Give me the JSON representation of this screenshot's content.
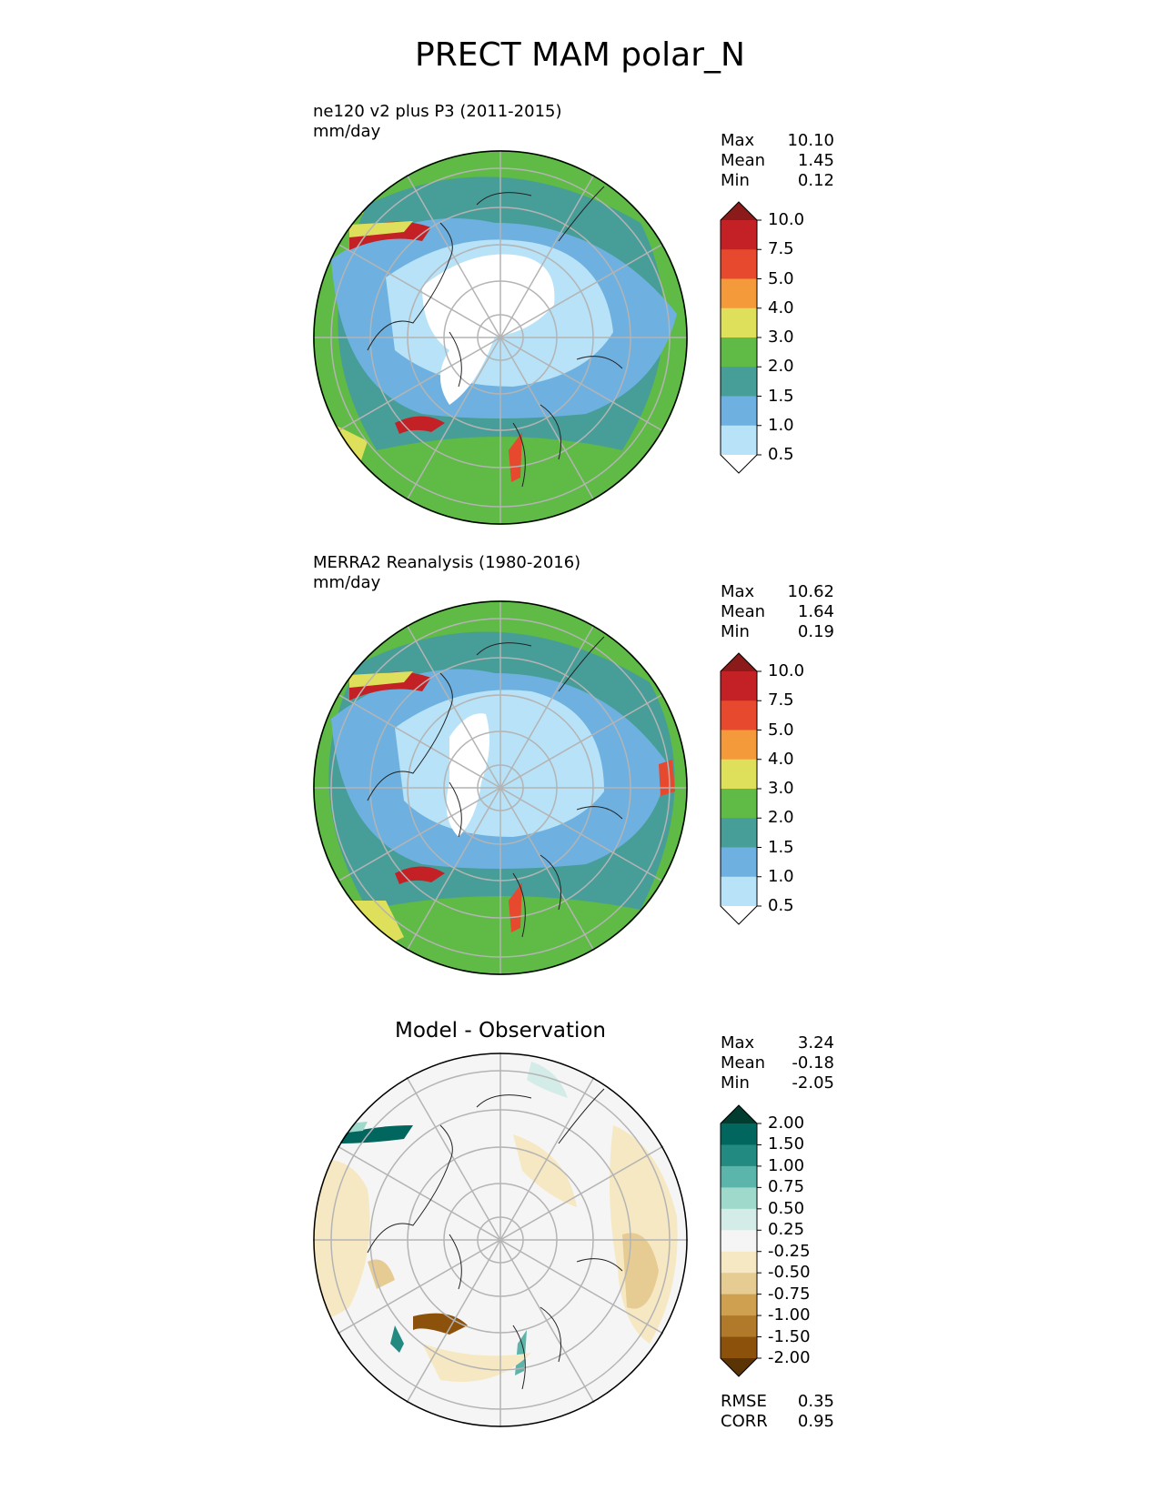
{
  "title": "PRECT MAM polar_N",
  "panels": [
    {
      "id": "model",
      "subtitle": "ne120 v2 plus P3 (2011-2015)",
      "units": "mm/day",
      "stats": [
        {
          "label": "Max",
          "value": "10.10"
        },
        {
          "label": "Mean",
          "value": "1.45"
        },
        {
          "label": "Min",
          "value": "0.12"
        }
      ],
      "colorbar": {
        "ticks": [
          "10.0",
          "7.5",
          "5.0",
          "4.0",
          "3.0",
          "2.0",
          "1.5",
          "1.0",
          "0.5"
        ],
        "colors": [
          "#8b1a1a",
          "#c42127",
          "#e6492d",
          "#f59a3b",
          "#dee05b",
          "#5fba46",
          "#479e99",
          "#6eb1e0",
          "#b7e2f7",
          "#ffffff"
        ]
      }
    },
    {
      "id": "obs",
      "subtitle": "MERRA2 Reanalysis (1980-2016)",
      "units": "mm/day",
      "stats": [
        {
          "label": "Max",
          "value": "10.62"
        },
        {
          "label": "Mean",
          "value": "1.64"
        },
        {
          "label": "Min",
          "value": "0.19"
        }
      ],
      "colorbar": {
        "ticks": [
          "10.0",
          "7.5",
          "5.0",
          "4.0",
          "3.0",
          "2.0",
          "1.5",
          "1.0",
          "0.5"
        ],
        "colors": [
          "#8b1a1a",
          "#c42127",
          "#e6492d",
          "#f59a3b",
          "#dee05b",
          "#5fba46",
          "#479e99",
          "#6eb1e0",
          "#b7e2f7",
          "#ffffff"
        ]
      }
    },
    {
      "id": "diff",
      "title": "Model - Observation",
      "stats": [
        {
          "label": "Max",
          "value": "3.24"
        },
        {
          "label": "Mean",
          "value": "-0.18"
        },
        {
          "label": "Min",
          "value": "-2.05"
        }
      ],
      "colorbar": {
        "ticks": [
          "2.00",
          "1.50",
          "1.00",
          "0.75",
          "0.50",
          "0.25",
          "-0.25",
          "-0.50",
          "-0.75",
          "-1.00",
          "-1.50",
          "-2.00"
        ],
        "colors": [
          "#003c30",
          "#01665e",
          "#238a82",
          "#5bb5aa",
          "#9ed9cc",
          "#d3ece8",
          "#f5f5f5",
          "#f6e8c3",
          "#e6cc92",
          "#cfa050",
          "#b07a2a",
          "#8c510a",
          "#5a3405"
        ]
      },
      "metrics": [
        {
          "label": "RMSE",
          "value": "0.35"
        },
        {
          "label": "CORR",
          "value": "0.95"
        }
      ]
    }
  ]
}
